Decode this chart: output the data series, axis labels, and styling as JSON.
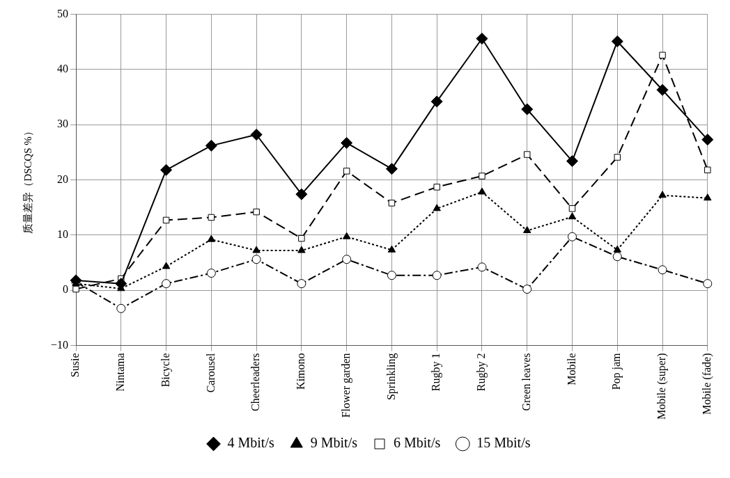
{
  "chart_data": {
    "type": "line",
    "ylabel": "质量差异（DSCQS %）",
    "categories": [
      "Susie",
      "Nintama",
      "Bicycle",
      "Carousel",
      "Cheerleaders",
      "Kimono",
      "Flower garden",
      "Sprinkling",
      "Rugby 1",
      "Rugby 2",
      "Green leaves",
      "Mobile",
      "Pop jam",
      "Mobile (super)",
      "Mobile (fade)"
    ],
    "series": [
      {
        "name": "4 Mbit/s",
        "color": "#000000",
        "marker": "diamond",
        "line_style": "solid",
        "values": [
          1.8,
          1.2,
          21.8,
          26.2,
          28.2,
          17.4,
          26.7,
          22.0,
          34.2,
          45.6,
          32.8,
          23.4,
          45.1,
          36.3,
          27.3
        ]
      },
      {
        "name": "6 Mbit/s",
        "color": "#000000",
        "marker": "square",
        "line_style": "dashed",
        "values": [
          0.2,
          2.1,
          12.7,
          13.2,
          14.2,
          9.4,
          21.6,
          15.8,
          18.7,
          20.7,
          24.6,
          14.8,
          24.1,
          42.6,
          21.8
        ]
      },
      {
        "name": "9 Mbit/s",
        "color": "#000000",
        "marker": "triangle",
        "line_style": "dotted",
        "values": [
          1.2,
          0.3,
          4.3,
          9.2,
          7.2,
          7.2,
          9.7,
          7.3,
          14.8,
          17.8,
          10.8,
          13.3,
          7.3,
          17.2,
          16.7
        ]
      },
      {
        "name": "15 Mbit/s",
        "color": "#000000",
        "marker": "circle",
        "line_style": "dashdot",
        "values": [
          1.5,
          -3.3,
          1.2,
          3.1,
          5.6,
          1.2,
          5.6,
          2.7,
          2.7,
          4.2,
          0.2,
          9.7,
          6.1,
          3.7,
          1.2
        ]
      }
    ],
    "ylim": [
      -10,
      50
    ],
    "yticks": [
      -10,
      0,
      10,
      20,
      30,
      40,
      50
    ],
    "grid": true,
    "legend": "bottom"
  }
}
